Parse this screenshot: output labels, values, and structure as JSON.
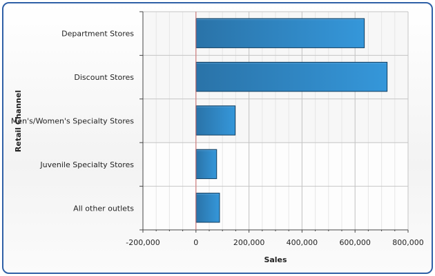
{
  "chart_data": {
    "type": "bar",
    "orientation": "horizontal",
    "title": "",
    "xlabel": "Sales",
    "ylabel": "Retail Channel",
    "categories": [
      "Department Stores",
      "Discount Stores",
      "Men's/Women's Specialty Stores",
      "Juvenile Specialty Stores",
      "All other outlets"
    ],
    "values": [
      635000,
      721000,
      148000,
      78000,
      89000
    ],
    "xlim": [
      -200000,
      800000
    ],
    "xticks": [
      -200000,
      0,
      200000,
      400000,
      600000,
      800000
    ],
    "xtick_labels": [
      "-200,000",
      "0",
      "200,000",
      "400,000",
      "600,000",
      "800,000"
    ],
    "grid": true,
    "legend": "none",
    "colors": {
      "bar_dark": "#2a73a8",
      "bar_light": "#3597da",
      "bar_border": "#0f3c5e",
      "zero_line": "#d07070",
      "frame": "#2e5fa6"
    }
  }
}
